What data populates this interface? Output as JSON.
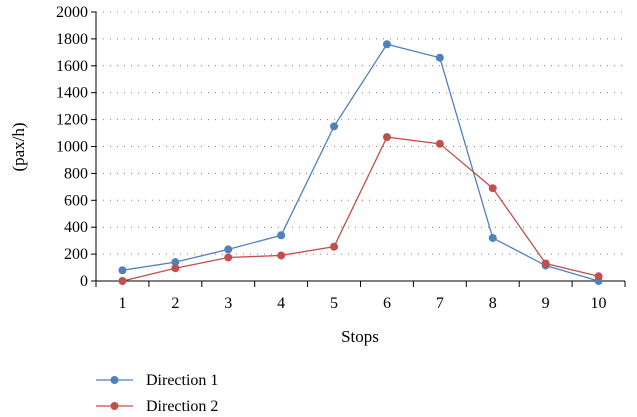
{
  "chart_data": {
    "type": "line",
    "title": "",
    "xlabel": "Stops",
    "ylabel": "(pax/h)",
    "categories": [
      "1",
      "2",
      "3",
      "4",
      "5",
      "6",
      "7",
      "8",
      "9",
      "10"
    ],
    "ylim": [
      0,
      2000
    ],
    "yticks": [
      "0",
      "200",
      "400",
      "600",
      "800",
      "1000",
      "1200",
      "1400",
      "1600",
      "1800",
      "2000"
    ],
    "grid": true,
    "legend_position": "bottom-left",
    "series": [
      {
        "name": "Direction 1",
        "color": "#4F81BD",
        "values": [
          80,
          140,
          235,
          340,
          1150,
          1760,
          1660,
          320,
          115,
          0
        ]
      },
      {
        "name": "Direction 2",
        "color": "#C0504D",
        "values": [
          0,
          95,
          175,
          190,
          255,
          1070,
          1020,
          690,
          130,
          35
        ]
      }
    ]
  }
}
